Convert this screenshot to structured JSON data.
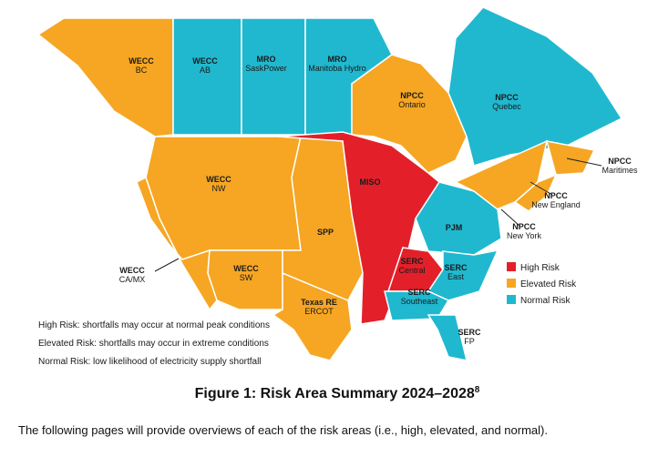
{
  "regions": [
    {
      "name": "WECC",
      "sub": "BC",
      "color": "#f6a623"
    },
    {
      "name": "WECC",
      "sub": "AB",
      "color": "#20b8cf"
    },
    {
      "name": "MRO",
      "sub": "SaskPower",
      "color": "#20b8cf"
    },
    {
      "name": "MRO",
      "sub": "Manitoba Hydro",
      "color": "#20b8cf"
    },
    {
      "name": "NPCC",
      "sub": "Ontario",
      "color": "#f6a623"
    },
    {
      "name": "NPCC",
      "sub": "Quebec",
      "color": "#20b8cf"
    },
    {
      "name": "NPCC",
      "sub": "Maritimes",
      "color": "#f6a623"
    },
    {
      "name": "NPCC",
      "sub": "New England",
      "color": "#f6a623"
    },
    {
      "name": "NPCC",
      "sub": "New York",
      "color": "#f6a623"
    },
    {
      "name": "WECC",
      "sub": "NW",
      "color": "#f6a623"
    },
    {
      "name": "WECC",
      "sub": "CA/MX",
      "color": "#f6a623"
    },
    {
      "name": "WECC",
      "sub": "SW",
      "color": "#f6a623"
    },
    {
      "name": "SPP",
      "color": "#f6a623"
    },
    {
      "name": "Texas RE",
      "sub": "ERCOT",
      "color": "#f6a623"
    },
    {
      "name": "MISO",
      "color": "#e3202a"
    },
    {
      "name": "PJM",
      "color": "#20b8cf"
    },
    {
      "name": "SERC",
      "sub": "Central",
      "color": "#e3202a"
    },
    {
      "name": "SERC",
      "sub": "East",
      "color": "#20b8cf"
    },
    {
      "name": "SERC",
      "sub": "Southeast",
      "color": "#20b8cf"
    },
    {
      "name": "SERC",
      "sub": "FP",
      "color": "#20b8cf"
    }
  ],
  "legend": [
    {
      "label": "High Risk",
      "color": "#e3202a"
    },
    {
      "label": "Elevated Risk",
      "color": "#f6a623"
    },
    {
      "label": "Normal Risk",
      "color": "#20b8cf"
    }
  ],
  "notes": [
    "High Risk: shortfalls may occur at normal peak conditions",
    "Elevated Risk: shortfalls may occur in extreme conditions",
    "Normal Risk: low likelihood of electricity supply shortfall"
  ],
  "caption": {
    "text": "Figure 1: Risk Area Summary 2024–2028",
    "footnote": "8"
  },
  "body": "The following pages will provide overviews of each of the risk areas (i.e., high, elevated, and normal)."
}
